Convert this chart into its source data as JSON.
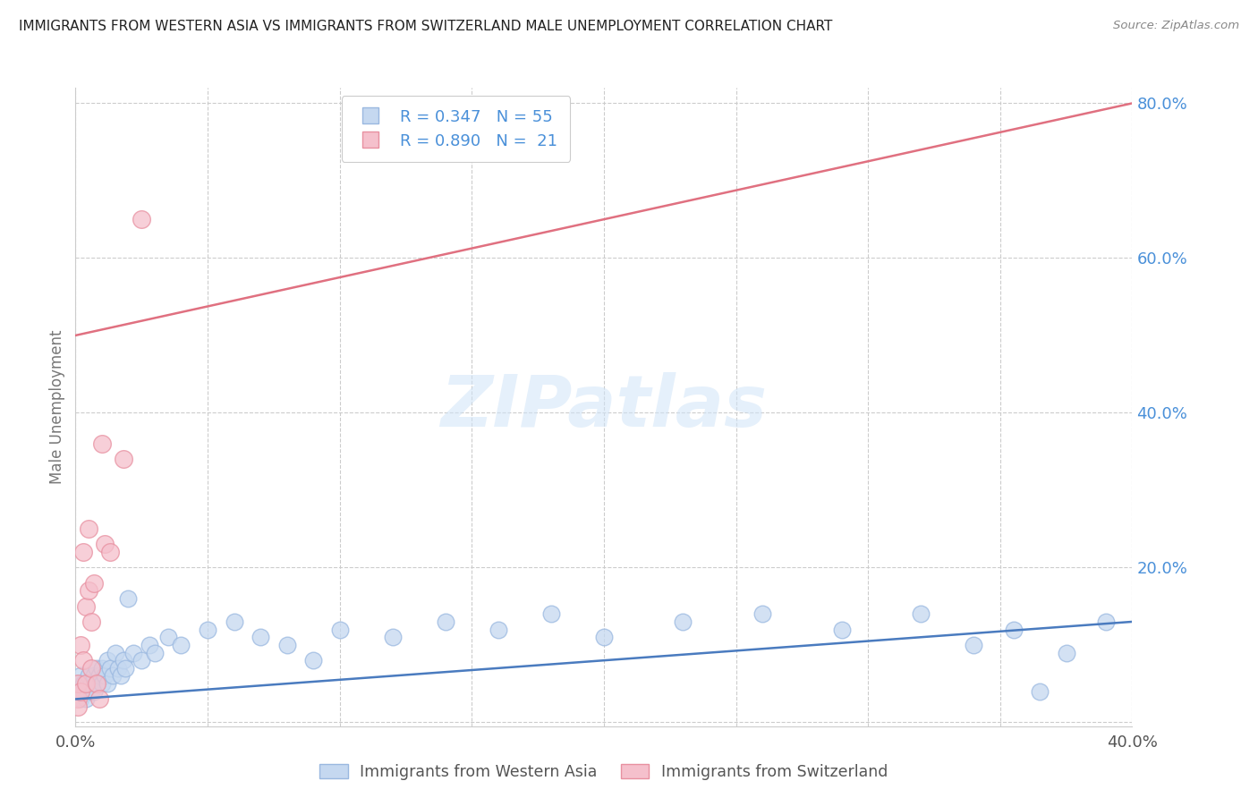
{
  "title": "IMMIGRANTS FROM WESTERN ASIA VS IMMIGRANTS FROM SWITZERLAND MALE UNEMPLOYMENT CORRELATION CHART",
  "source": "Source: ZipAtlas.com",
  "ylabel": "Male Unemployment",
  "watermark": "ZIPatlas",
  "background_color": "#ffffff",
  "grid_color": "#cccccc",
  "title_color": "#222222",
  "source_color": "#888888",
  "yaxis_color": "#4a90d9",
  "xaxis_color": "#555555",
  "series1_face_color": "#c5d8f0",
  "series1_edge_color": "#9ab8e0",
  "series2_face_color": "#f5c0cc",
  "series2_edge_color": "#e890a0",
  "line1_color": "#4a7bbf",
  "line2_color": "#e07080",
  "series1_name": "Immigrants from Western Asia",
  "series2_name": "Immigrants from Switzerland",
  "xlim": [
    0.0,
    0.4
  ],
  "ylim": [
    -0.005,
    0.82
  ],
  "yticks": [
    0.0,
    0.2,
    0.4,
    0.6,
    0.8
  ],
  "xticks": [
    0.0,
    0.05,
    0.1,
    0.15,
    0.2,
    0.25,
    0.3,
    0.35,
    0.4
  ],
  "xtick_labels": [
    "0.0%",
    "",
    "",
    "",
    "",
    "",
    "",
    "",
    "40.0%"
  ],
  "western_asia_x": [
    0.001,
    0.001,
    0.002,
    0.002,
    0.003,
    0.003,
    0.004,
    0.005,
    0.005,
    0.006,
    0.006,
    0.007,
    0.007,
    0.008,
    0.008,
    0.009,
    0.01,
    0.01,
    0.011,
    0.012,
    0.012,
    0.013,
    0.014,
    0.015,
    0.016,
    0.017,
    0.018,
    0.019,
    0.02,
    0.022,
    0.025,
    0.028,
    0.03,
    0.035,
    0.04,
    0.05,
    0.06,
    0.07,
    0.08,
    0.09,
    0.1,
    0.12,
    0.14,
    0.16,
    0.18,
    0.2,
    0.23,
    0.26,
    0.29,
    0.32,
    0.34,
    0.355,
    0.365,
    0.375,
    0.39
  ],
  "western_asia_y": [
    0.05,
    0.04,
    0.03,
    0.06,
    0.04,
    0.05,
    0.03,
    0.05,
    0.06,
    0.04,
    0.05,
    0.04,
    0.06,
    0.05,
    0.07,
    0.06,
    0.05,
    0.07,
    0.06,
    0.08,
    0.05,
    0.07,
    0.06,
    0.09,
    0.07,
    0.06,
    0.08,
    0.07,
    0.16,
    0.09,
    0.08,
    0.1,
    0.09,
    0.11,
    0.1,
    0.12,
    0.13,
    0.11,
    0.1,
    0.08,
    0.12,
    0.11,
    0.13,
    0.12,
    0.14,
    0.11,
    0.13,
    0.14,
    0.12,
    0.14,
    0.1,
    0.12,
    0.04,
    0.09,
    0.13
  ],
  "switzerland_x": [
    0.001,
    0.001,
    0.001,
    0.002,
    0.002,
    0.003,
    0.003,
    0.004,
    0.004,
    0.005,
    0.005,
    0.006,
    0.006,
    0.007,
    0.008,
    0.009,
    0.01,
    0.011,
    0.013,
    0.018,
    0.025
  ],
  "switzerland_y": [
    0.03,
    0.05,
    0.02,
    0.1,
    0.04,
    0.22,
    0.08,
    0.15,
    0.05,
    0.17,
    0.25,
    0.07,
    0.13,
    0.18,
    0.05,
    0.03,
    0.36,
    0.23,
    0.22,
    0.34,
    0.65
  ],
  "line1_x": [
    0.0,
    0.4
  ],
  "line1_y": [
    0.03,
    0.13
  ],
  "line2_x": [
    0.0,
    0.4
  ],
  "line2_y": [
    0.5,
    0.8
  ]
}
